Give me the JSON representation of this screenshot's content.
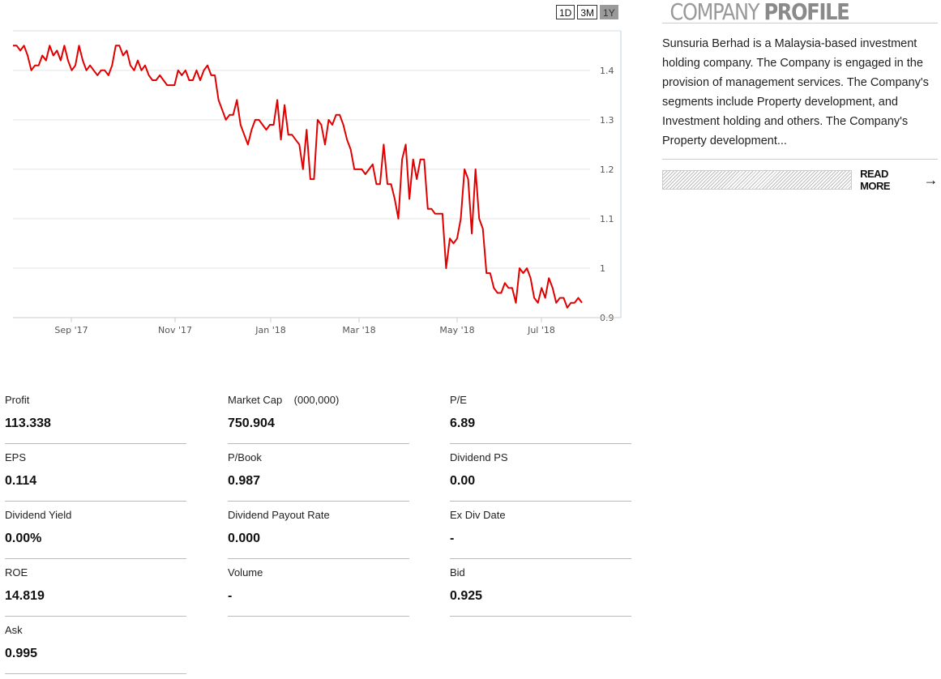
{
  "range_buttons": [
    {
      "label": "1D",
      "active": false
    },
    {
      "label": "3M",
      "active": false
    },
    {
      "label": "1Y",
      "active": true
    }
  ],
  "chart_data": {
    "type": "line",
    "series": [
      {
        "color": "#e00000"
      }
    ],
    "x_ticks": [
      "Sep '17",
      "Nov '17",
      "Jan '18",
      "Mar '18",
      "May '18",
      "Jul '18"
    ],
    "y_ticks": [
      "0.9",
      "1",
      "1.1",
      "1.2",
      "1.3",
      "1.4"
    ],
    "ylim": [
      0.9,
      1.48
    ],
    "grid": true,
    "values": [
      1.45,
      1.45,
      1.44,
      1.45,
      1.43,
      1.4,
      1.41,
      1.41,
      1.43,
      1.42,
      1.45,
      1.43,
      1.44,
      1.42,
      1.45,
      1.42,
      1.4,
      1.41,
      1.45,
      1.42,
      1.4,
      1.41,
      1.4,
      1.39,
      1.4,
      1.4,
      1.39,
      1.41,
      1.45,
      1.45,
      1.43,
      1.44,
      1.41,
      1.4,
      1.42,
      1.4,
      1.41,
      1.39,
      1.38,
      1.38,
      1.39,
      1.38,
      1.37,
      1.37,
      1.37,
      1.4,
      1.39,
      1.4,
      1.38,
      1.38,
      1.4,
      1.38,
      1.4,
      1.41,
      1.39,
      1.39,
      1.34,
      1.32,
      1.3,
      1.31,
      1.31,
      1.34,
      1.29,
      1.27,
      1.25,
      1.28,
      1.3,
      1.3,
      1.29,
      1.28,
      1.29,
      1.29,
      1.34,
      1.26,
      1.33,
      1.27,
      1.27,
      1.26,
      1.25,
      1.2,
      1.28,
      1.18,
      1.18,
      1.3,
      1.29,
      1.25,
      1.3,
      1.29,
      1.31,
      1.31,
      1.29,
      1.26,
      1.24,
      1.2,
      1.2,
      1.2,
      1.19,
      1.2,
      1.21,
      1.17,
      1.17,
      1.25,
      1.17,
      1.17,
      1.14,
      1.1,
      1.22,
      1.25,
      1.14,
      1.22,
      1.18,
      1.22,
      1.22,
      1.12,
      1.12,
      1.11,
      1.11,
      1.11,
      1.0,
      1.06,
      1.05,
      1.06,
      1.1,
      1.2,
      1.18,
      1.07,
      1.2,
      1.1,
      1.08,
      0.99,
      0.99,
      0.96,
      0.95,
      0.95,
      0.97,
      0.96,
      0.96,
      0.93,
      1.0,
      0.99,
      1.0,
      0.98,
      0.94,
      0.93,
      0.96,
      0.94,
      0.98,
      0.96,
      0.93,
      0.94,
      0.94,
      0.92,
      0.93,
      0.93,
      0.94,
      0.93
    ]
  },
  "profile": {
    "heading_light": "COMPANY",
    "heading_bold": "PROFILE",
    "text": "Sunsuria Berhad is a Malaysia-based investment holding company. The Company is engaged in the provision of management services. The Company's segments include Property development, and Investment holding and others. The Company's Property development...",
    "read_more": "READ MORE",
    "arrow_icon": "→"
  },
  "stats": [
    {
      "label": "Profit",
      "value": "113.338"
    },
    {
      "label": "Market Cap    (000,000)",
      "value": "750.904"
    },
    {
      "label": "P/E",
      "value": "6.89"
    },
    {
      "label": "EPS",
      "value": "0.114"
    },
    {
      "label": "P/Book",
      "value": "0.987"
    },
    {
      "label": "Dividend PS",
      "value": "0.00"
    },
    {
      "label": "Dividend Yield",
      "value": "0.00%"
    },
    {
      "label": "Dividend Payout Rate",
      "value": "0.000"
    },
    {
      "label": "Ex Div Date",
      "value": "-"
    },
    {
      "label": "ROE",
      "value": "14.819"
    },
    {
      "label": "Volume",
      "value": "-"
    },
    {
      "label": "Bid",
      "value": "0.925"
    },
    {
      "label": "Ask",
      "value": "0.995"
    }
  ]
}
